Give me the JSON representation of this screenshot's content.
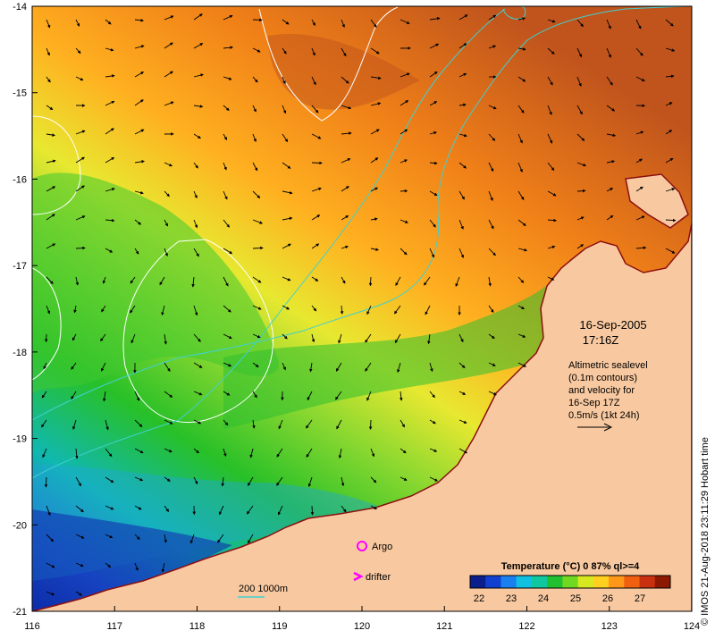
{
  "map": {
    "x_ticks": [
      "116",
      "117",
      "118",
      "119",
      "120",
      "121",
      "122",
      "123",
      "124"
    ],
    "y_ticks": [
      "-14",
      "-15",
      "-16",
      "-17",
      "-18",
      "-19",
      "-20",
      "-21"
    ],
    "land_color": "#f8c9a0",
    "ocean_colors": {
      "warm": "#c8641e",
      "mid": "#ffa020",
      "yellow": "#f0e830",
      "lightgreen": "#b8e030",
      "green": "#28c028",
      "teal": "#10b8b0",
      "blue": "#2060d8",
      "deep": "#0828a0"
    },
    "contour_color": "#ffffff",
    "bathymetry_color": "#40d0d0"
  },
  "annotations": {
    "date": "16-Sep-2005",
    "time": "17:16Z",
    "info_lines": [
      "Altimetric sealevel",
      "(0.1m contours)",
      "and velocity for",
      "16-Sep 17Z",
      "0.5m/s (1kt 24h)"
    ],
    "credit": "© IMOS 21-Aug-2018 23:11:29 Hobart time"
  },
  "legend": {
    "argo_label": "Argo",
    "drifter_label": "drifter",
    "depth_label": "200  1000m",
    "argo_color": "#ff00ff",
    "drifter_color": "#ff00ff",
    "colorbar_title": "Temperature (°C) 0 87% ql>=4",
    "colorbar_ticks": [
      "22",
      "23",
      "24",
      "25",
      "26",
      "27"
    ],
    "colorbar_colors": [
      "#0a1e8c",
      "#1040d0",
      "#1a80f0",
      "#10c0e0",
      "#10c8a0",
      "#20c030",
      "#70d820",
      "#d8e820",
      "#ffd020",
      "#ff9818",
      "#f06010",
      "#c83010",
      "#8c1800"
    ]
  }
}
